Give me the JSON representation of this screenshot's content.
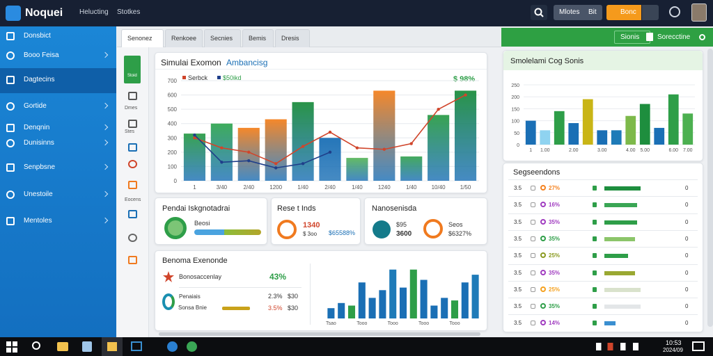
{
  "header": {
    "logo": "Noquei",
    "nav": [
      "Helucting",
      "Stotkes"
    ],
    "buttons": [
      "Mlotes",
      "Bit",
      "Bonc"
    ]
  },
  "sidebar": [
    "Donsbict",
    "Booo Feisa",
    "Dagtecins",
    "Gortide",
    "Denqnin",
    "Dunisinns",
    "Senpbsne",
    "Unestoile",
    "Mentoles"
  ],
  "icon_rail": [
    "Stoid",
    "Dmes",
    "Stes",
    "Eocens"
  ],
  "tabs": [
    "Senonez",
    "Renkoee",
    "Secnies",
    "Bemis",
    "Dresis"
  ],
  "green_bar": {
    "left": "Sionis",
    "right": "Sorecctine"
  },
  "main_chart": {
    "type": "bar",
    "title": "Simulai Exomon",
    "subtitle": "Ambancisg",
    "legend": [
      "Serbck",
      "$50ikd"
    ],
    "badge": "$ 98%",
    "categories": [
      "1",
      "3/40",
      "2/40",
      "1200",
      "1/40",
      "2/40",
      "1/40",
      "1240",
      "1/40",
      "10/40",
      "1/50"
    ],
    "bars": {
      "values": [
        330,
        400,
        370,
        430,
        550,
        300,
        160,
        630,
        170,
        460,
        630
      ],
      "colors": [
        "#2e9e48",
        "#34a853",
        "#f5821f",
        "#f5821f",
        "#1e8e3e",
        "#1a6fb5",
        "#5cb85c",
        "#f5821f",
        "#3aa655",
        "#2e9e48",
        "#1e8e3e"
      ]
    },
    "series": [
      {
        "name": "Serbck",
        "color": "#d0452b",
        "values": [
          300,
          230,
          200,
          120,
          240,
          340,
          230,
          220,
          260,
          500,
          600
        ]
      },
      {
        "name": "$50ikd",
        "color": "#1f3f8a",
        "values": [
          320,
          130,
          140,
          90,
          120,
          200,
          null,
          null,
          null,
          null,
          null
        ]
      }
    ],
    "ylim": [
      0,
      700
    ],
    "yticks": [
      0,
      100,
      200,
      300,
      400,
      500,
      600,
      700
    ]
  },
  "cards": [
    {
      "title": "Pendai Iskgnotadrai",
      "label": "Beosi"
    },
    {
      "title": "Rese t Inds",
      "big": "1340",
      "small": "$ 3oo",
      "extra": "$65588%"
    },
    {
      "title": "Nanosenisda",
      "a": "$95",
      "b": "3600",
      "c": "Seos",
      "d": "$6327%"
    }
  ],
  "bottom_card": {
    "title": "Benoma Exenonde",
    "row1": {
      "label": "Bonosaccenlay",
      "value": "43%"
    },
    "row2": {
      "label": "Penaiais",
      "pct": "2.3%",
      "amt": "$30"
    },
    "row3": {
      "label": "Sonsa Bnie",
      "pct": "3.5%",
      "amt": "$30"
    },
    "chart": {
      "type": "bar",
      "categories": [
        "Tsao",
        null,
        null,
        "Tooo",
        null,
        null,
        "Tooo",
        null,
        null,
        "Tooo",
        null,
        null,
        "Tooo",
        null,
        null
      ],
      "values": [
        20,
        30,
        25,
        70,
        40,
        55,
        95,
        60,
        95,
        75,
        25,
        40,
        35,
        70,
        85
      ],
      "colors": [
        "#1a6fb5",
        "#1a6fb5",
        "#2e9e48",
        "#1a6fb5",
        "#1a6fb5",
        "#1a6fb5",
        "#1e7bb8",
        "#1a6fb5",
        "#2e9e48",
        "#1a6fb5",
        "#1a6fb5",
        "#1a6fb5",
        "#2e9e48",
        "#1a6fb5",
        "#1e7bb8"
      ],
      "ylim": [
        0,
        100
      ]
    }
  },
  "right_chart": {
    "type": "bar",
    "title": "Smolelami Cog Sonis",
    "categories": [
      "1",
      "1.00",
      null,
      "2.00",
      null,
      "3.00",
      null,
      "4.00",
      "5.00",
      null,
      "6.00",
      "7.00"
    ],
    "values": [
      100,
      60,
      140,
      90,
      190,
      60,
      60,
      120,
      170,
      70,
      210,
      130
    ],
    "colors": [
      "#1a6fb5",
      "#8fd3f0",
      "#2e9e48",
      "#1a6fb5",
      "#c9b516",
      "#1a6fb5",
      "#1e7bb8",
      "#7db94a",
      "#1e8e3e",
      "#1a6fb5",
      "#2e9e48",
      "#4cb050"
    ],
    "ylim": [
      0,
      250
    ],
    "yticks": [
      0,
      50,
      100,
      150,
      200,
      250
    ]
  },
  "list": {
    "title": "Segseendons",
    "rows": [
      {
        "id": "3.5",
        "pct": "27%",
        "color": "#f5821f",
        "bar": 100,
        "bar_color": "#1e8e3e",
        "end": "0"
      },
      {
        "id": "3.5",
        "pct": "16%",
        "color": "#a03cc0",
        "bar": 90,
        "bar_color": "#3aa655",
        "end": "0"
      },
      {
        "id": "3.5",
        "pct": "35%",
        "color": "#a03cc0",
        "bar": 90,
        "bar_color": "#2e9e48",
        "end": "0"
      },
      {
        "id": "3.5",
        "pct": "35%",
        "color": "#2e9e48",
        "bar": 85,
        "bar_color": "#8cc56a",
        "end": "0"
      },
      {
        "id": "3.5",
        "pct": "25%",
        "color": "#8a9a20",
        "bar": 65,
        "bar_color": "#2e9e48",
        "end": "0"
      },
      {
        "id": "3.5",
        "pct": "35%",
        "color": "#a03cc0",
        "bar": 85,
        "bar_color": "#9aa832",
        "end": "0"
      },
      {
        "id": "3.5",
        "pct": "25%",
        "color": "#f5a11f",
        "bar": 100,
        "bar_color": "#d9e2cc",
        "end": "0"
      },
      {
        "id": "3.5",
        "pct": "35%",
        "color": "#2e9e48",
        "bar": 100,
        "bar_color": "#e3e6e8",
        "end": "0"
      },
      {
        "id": "3.5",
        "pct": "14%",
        "color": "#a03cc0",
        "bar": 30,
        "bar_color": "#3a8fd0",
        "end": "0"
      }
    ]
  },
  "taskbar": {
    "time": "10:53",
    "date": "2024/09"
  }
}
